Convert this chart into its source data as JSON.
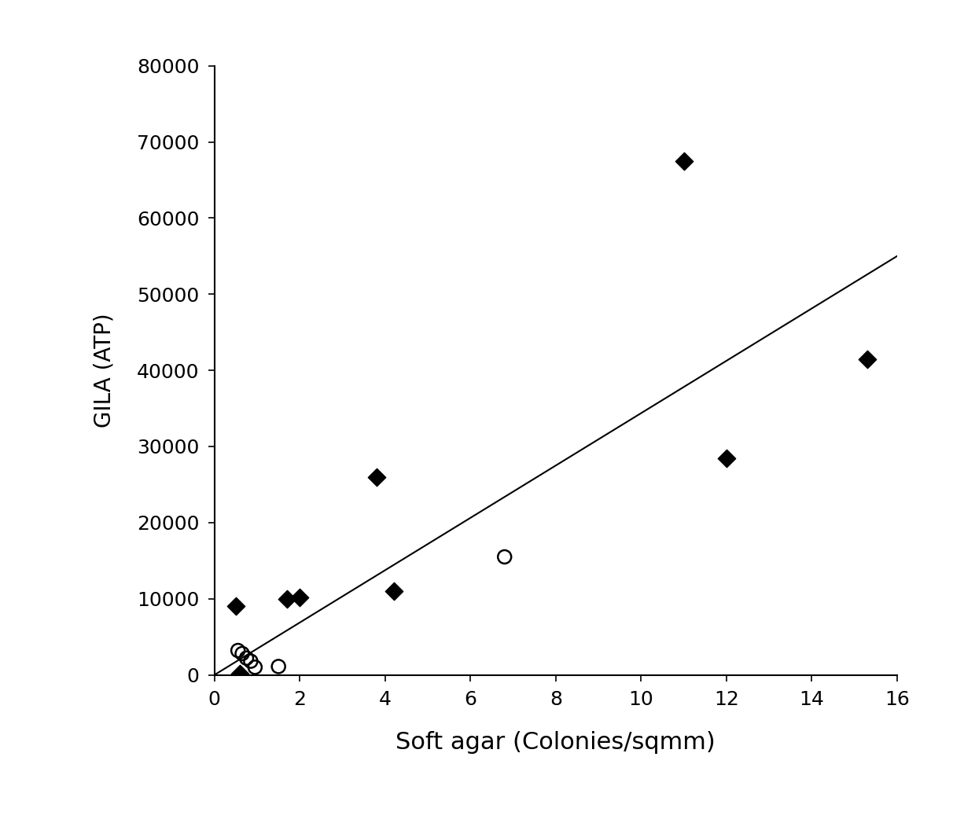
{
  "diamonds_x": [
    0.5,
    0.6,
    1.7,
    2.0,
    3.8,
    4.2,
    11.0,
    12.0,
    15.3
  ],
  "diamonds_y": [
    9000,
    200,
    10000,
    10200,
    26000,
    11000,
    67500,
    28500,
    41500
  ],
  "circles_x": [
    0.55,
    0.65,
    0.75,
    0.85,
    0.95,
    1.5,
    6.8
  ],
  "circles_y": [
    3200,
    2800,
    2200,
    1800,
    1000,
    1100,
    15500
  ],
  "trendline_x": [
    0,
    16
  ],
  "trendline_y": [
    0,
    55000
  ],
  "xlabel": "Soft agar (Colonies/sqmm)",
  "ylabel": "GILA (ATP)",
  "xlim": [
    0,
    16
  ],
  "ylim": [
    0,
    80000
  ],
  "xticks": [
    0,
    2,
    4,
    6,
    8,
    10,
    12,
    14,
    16
  ],
  "yticks": [
    0,
    10000,
    20000,
    30000,
    40000,
    50000,
    60000,
    70000,
    80000
  ],
  "diamond_marker_size": 130,
  "circle_marker_size": 150,
  "line_color": "#000000",
  "marker_color": "#000000",
  "background_color": "#ffffff",
  "xlabel_fontsize": 22,
  "ylabel_fontsize": 20,
  "tick_fontsize": 18
}
